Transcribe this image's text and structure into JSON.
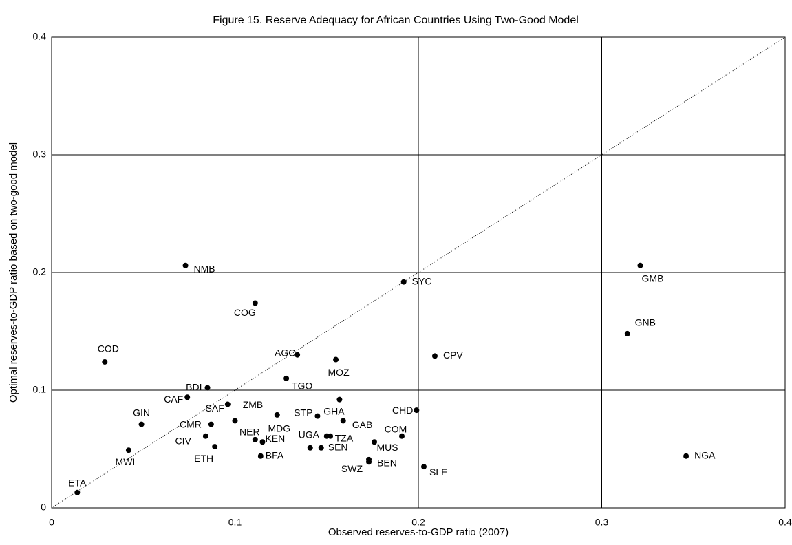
{
  "chart_data": {
    "type": "scatter",
    "title": "Figure 15. Reserve Adequacy for African Countries Using Two-Good Model",
    "x_label": "Observed reserves-to-GDP ratio (2007)",
    "y_label": "Optimal reserves-to-GDP ratio based on two-good model",
    "labels": [
      "ETA",
      "COD",
      "MWI",
      "GIN",
      "CAF",
      "NMB",
      "BDI",
      "CMR",
      "CIV",
      "ETH",
      "SAF",
      "ZMB",
      "COG",
      "NER",
      "KEN",
      "BFA",
      "MDG",
      "TGO",
      "AGO",
      "UGA",
      "SEN",
      "STP",
      "GHA",
      "MOZ",
      "TZA",
      null,
      "GAB",
      "BEN",
      "SWZ",
      "MUS",
      "COM",
      "CHD",
      "SYC",
      "SLE",
      "CPV",
      "GNB",
      "GMB",
      "NGA"
    ],
    "x": [
      0.014,
      0.029,
      0.042,
      0.049,
      0.074,
      0.073,
      0.085,
      0.087,
      0.084,
      0.089,
      0.096,
      0.1,
      0.111,
      0.111,
      0.115,
      0.114,
      0.123,
      0.128,
      0.134,
      0.141,
      0.147,
      0.145,
      0.157,
      0.155,
      0.15,
      0.152,
      0.159,
      0.173,
      0.173,
      0.176,
      0.191,
      0.199,
      0.192,
      0.203,
      0.209,
      0.314,
      0.321,
      0.346
    ],
    "y": [
      0.013,
      0.124,
      0.049,
      0.071,
      0.094,
      0.206,
      0.102,
      0.071,
      0.061,
      0.052,
      0.088,
      0.074,
      0.174,
      0.058,
      0.056,
      0.044,
      0.079,
      0.11,
      0.13,
      0.051,
      0.051,
      0.078,
      0.092,
      0.126,
      0.061,
      0.061,
      0.074,
      0.041,
      0.039,
      0.056,
      0.061,
      0.083,
      0.192,
      0.035,
      0.129,
      0.148,
      0.206,
      0.044
    ],
    "color": "#000000",
    "xlim": [
      0,
      0.4
    ],
    "ylim": [
      0,
      0.4
    ],
    "xticks": [
      0,
      0.1,
      0.2,
      0.3,
      0.4
    ],
    "yticks": [
      0,
      0.1,
      0.2,
      0.3,
      0.4
    ],
    "grid": true
  }
}
